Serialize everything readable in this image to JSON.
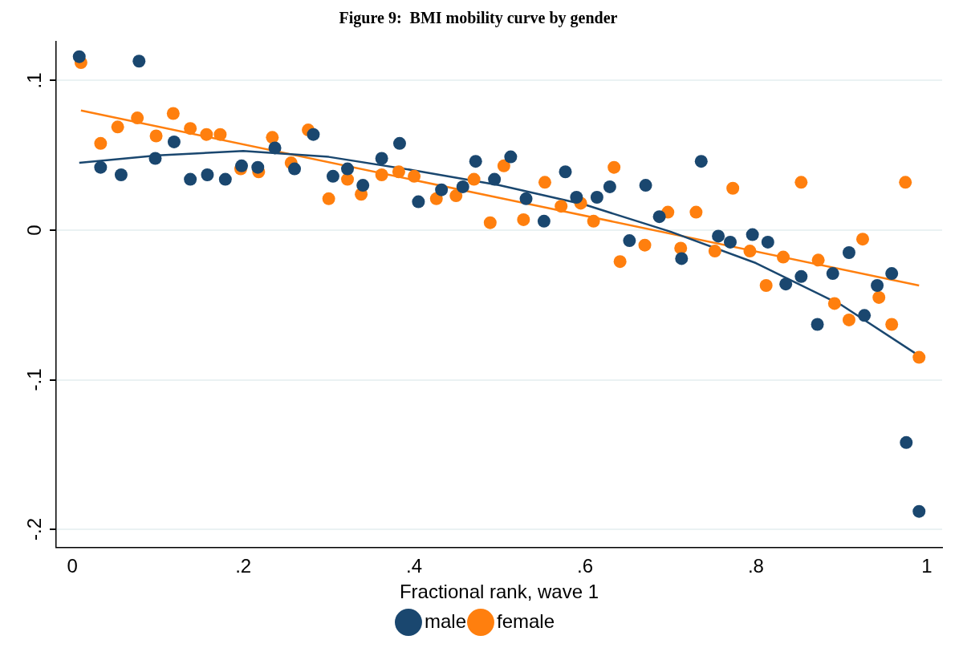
{
  "chart_data": {
    "type": "scatter",
    "title": "Figure 9:  BMI mobility curve by gender",
    "xlabel": "Fractional rank, wave 1",
    "xlim": [
      -0.019,
      1.018
    ],
    "ylim": [
      -0.212,
      0.126
    ],
    "xticks": [
      0,
      {
        "value": 0.2,
        "label": ".2"
      },
      {
        "value": 0.4,
        "label": ".4"
      },
      {
        "value": 0.6,
        "label": ".6"
      },
      {
        "value": 0.8,
        "label": ".8"
      },
      1
    ],
    "yticks": [
      {
        "value": -0.2,
        "label": "-.2"
      },
      {
        "value": -0.1,
        "label": "-.1"
      },
      0,
      {
        "value": 0.1,
        "label": ".1"
      }
    ],
    "grid": "y",
    "legend": "bottom",
    "series": [
      {
        "name": "male",
        "color": "#1a476f",
        "marker": "circle",
        "x": [
          0.008,
          0.033,
          0.057,
          0.078,
          0.097,
          0.119,
          0.138,
          0.158,
          0.179,
          0.198,
          0.217,
          0.237,
          0.26,
          0.282,
          0.305,
          0.322,
          0.34,
          0.362,
          0.383,
          0.405,
          0.432,
          0.457,
          0.472,
          0.494,
          0.513,
          0.531,
          0.552,
          0.577,
          0.59,
          0.614,
          0.629,
          0.652,
          0.671,
          0.687,
          0.713,
          0.736,
          0.756,
          0.77,
          0.796,
          0.814,
          0.835,
          0.853,
          0.872,
          0.89,
          0.909,
          0.927,
          0.942,
          0.959,
          0.976,
          0.991
        ],
        "values": [
          0.116,
          0.042,
          0.037,
          0.113,
          0.048,
          0.059,
          0.034,
          0.037,
          0.034,
          0.043,
          0.042,
          0.055,
          0.041,
          0.064,
          0.036,
          0.041,
          0.03,
          0.048,
          0.058,
          0.019,
          0.027,
          0.029,
          0.046,
          0.034,
          0.049,
          0.021,
          0.006,
          0.039,
          0.022,
          0.022,
          0.029,
          -0.007,
          0.03,
          0.009,
          -0.019,
          0.046,
          -0.004,
          -0.008,
          -0.003,
          -0.008,
          -0.036,
          -0.031,
          -0.063,
          -0.029,
          -0.015,
          -0.057,
          -0.037,
          -0.029,
          -0.142,
          -0.188
        ]
      },
      {
        "name": "female",
        "color": "#ff7f0e",
        "marker": "circle",
        "x": [
          0.01,
          0.033,
          0.053,
          0.076,
          0.098,
          0.118,
          0.138,
          0.157,
          0.173,
          0.197,
          0.218,
          0.234,
          0.256,
          0.276,
          0.3,
          0.322,
          0.338,
          0.362,
          0.382,
          0.4,
          0.426,
          0.449,
          0.47,
          0.489,
          0.505,
          0.528,
          0.553,
          0.572,
          0.595,
          0.61,
          0.634,
          0.641,
          0.67,
          0.697,
          0.712,
          0.73,
          0.752,
          0.773,
          0.793,
          0.812,
          0.832,
          0.853,
          0.873,
          0.892,
          0.909,
          0.925,
          0.944,
          0.959,
          0.975,
          0.991
        ],
        "values": [
          0.112,
          0.058,
          0.069,
          0.075,
          0.063,
          0.078,
          0.068,
          0.064,
          0.064,
          0.041,
          0.039,
          0.062,
          0.045,
          0.067,
          0.021,
          0.034,
          0.024,
          0.037,
          0.039,
          0.036,
          0.021,
          0.023,
          0.034,
          0.005,
          0.043,
          0.007,
          0.032,
          0.016,
          0.018,
          0.006,
          0.042,
          -0.021,
          -0.01,
          0.012,
          -0.012,
          0.012,
          -0.014,
          0.028,
          -0.014,
          -0.037,
          -0.018,
          0.032,
          -0.02,
          -0.049,
          -0.06,
          -0.006,
          -0.045,
          -0.063,
          0.032,
          -0.085
        ]
      },
      {
        "type": "line",
        "color": "#1a476f",
        "marker": "none",
        "line_style": "solid",
        "x": [
          0.008,
          0.1,
          0.2,
          0.3,
          0.4,
          0.5,
          0.6,
          0.7,
          0.8,
          0.9,
          0.991
        ],
        "values": [
          0.045,
          0.05,
          0.053,
          0.049,
          0.04,
          0.03,
          0.017,
          -0.001,
          -0.022,
          -0.05,
          -0.084
        ]
      },
      {
        "type": "line",
        "color": "#ff7f0e",
        "marker": "none",
        "line_style": "solid",
        "x": [
          0.01,
          0.991
        ],
        "values": [
          0.08,
          -0.037
        ]
      }
    ]
  }
}
